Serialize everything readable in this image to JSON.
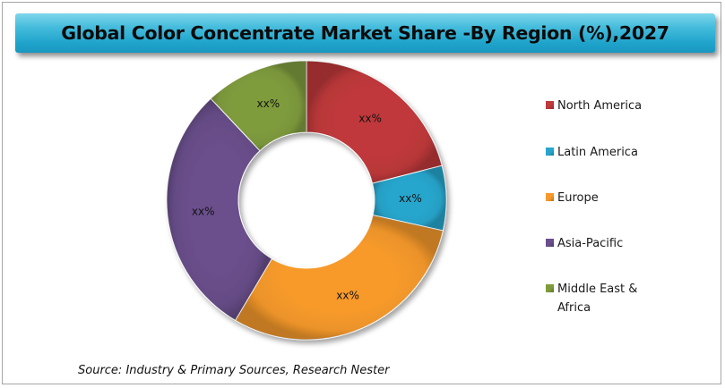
{
  "chart_data": {
    "type": "pie",
    "title": "Global Color Concentrate Market Share -By Region (%),2027",
    "source": "Source: Industry & Primary Sources, Research Nester",
    "legend_position": "right",
    "slices": [
      {
        "label": "North America",
        "value": 21,
        "data_label": "xx%",
        "color": "#c0393b"
      },
      {
        "label": "Latin America",
        "value": 7.5,
        "data_label": "xx%",
        "color": "#27a6cd"
      },
      {
        "label": "Europe",
        "value": 30,
        "data_label": "xx%",
        "color": "#f79a2b"
      },
      {
        "label": "Asia-Pacific",
        "value": 29.5,
        "data_label": "xx%",
        "color": "#6a4f8c"
      },
      {
        "label": "Middle East & Africa",
        "value": 12,
        "data_label": "xx%",
        "color": "#7f9c3d"
      }
    ]
  }
}
